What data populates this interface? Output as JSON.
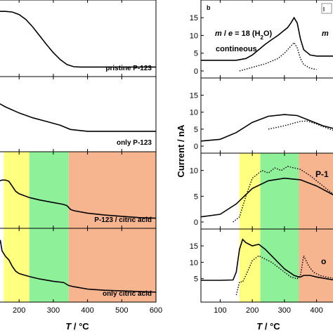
{
  "chart_data": [
    {
      "type": "line",
      "id": "a",
      "xlabel": "T / °C",
      "xlim": [
        140,
        600
      ],
      "xticks": [
        200,
        300,
        400,
        500,
        600
      ],
      "colors": {
        "line": "#000000",
        "yellow": "#ffff80",
        "green": "#8ff09a",
        "orange": "#f6b48f"
      },
      "panels": [
        {
          "label": "pristine P-123",
          "ylim": [
            0,
            1
          ],
          "shading": false,
          "series": [
            {
              "style": "solid",
              "x": [
                140,
                160,
                180,
                200,
                220,
                240,
                260,
                280,
                300,
                320,
                340,
                360,
                380,
                400,
                450,
                500,
                550,
                600
              ],
              "y": [
                0.93,
                0.93,
                0.92,
                0.88,
                0.8,
                0.68,
                0.54,
                0.4,
                0.27,
                0.16,
                0.08,
                0.045,
                0.04,
                0.04,
                0.04,
                0.04,
                0.04,
                0.04
              ]
            }
          ]
        },
        {
          "label": "only P-123",
          "ylim": [
            0,
            1
          ],
          "shading": false,
          "series": [
            {
              "style": "solid",
              "x": [
                140,
                160,
                200,
                240,
                280,
                320,
                350,
                400,
                450,
                500,
                550,
                600
              ],
              "y": [
                0.68,
                0.62,
                0.52,
                0.44,
                0.38,
                0.32,
                0.25,
                0.22,
                0.22,
                0.22,
                0.22,
                0.22
              ]
            }
          ]
        },
        {
          "label": "P-123 / citric acid",
          "ylim": [
            0,
            1
          ],
          "shading": true,
          "series": [
            {
              "style": "solid",
              "x": [
                140,
                150,
                160,
                170,
                180,
                190,
                200,
                230,
                260,
                300,
                330,
                340,
                350,
                360,
                400,
                450,
                500,
                550,
                600
              ],
              "y": [
                0.64,
                0.66,
                0.66,
                0.64,
                0.56,
                0.48,
                0.44,
                0.38,
                0.34,
                0.3,
                0.27,
                0.25,
                0.19,
                0.17,
                0.13,
                0.1,
                0.08,
                0.06,
                0.05
              ]
            }
          ]
        },
        {
          "label": "only citric acid",
          "ylim": [
            0,
            1
          ],
          "shading": true,
          "series": [
            {
              "style": "solid",
              "x": [
                140,
                145,
                150,
                160,
                170,
                180,
                190,
                200,
                230,
                260,
                300,
                330,
                345,
                360,
                400,
                450,
                500,
                550,
                600
              ],
              "y": [
                0.82,
                0.92,
                0.74,
                0.65,
                0.59,
                0.48,
                0.4,
                0.36,
                0.31,
                0.27,
                0.23,
                0.21,
                0.16,
                0.14,
                0.1,
                0.08,
                0.07,
                0.06,
                0.05
              ]
            }
          ]
        }
      ],
      "shading": [
        {
          "from": 155,
          "to": 230,
          "color": "yellow"
        },
        {
          "from": 230,
          "to": 345,
          "color": "green"
        },
        {
          "from": 345,
          "to": 600,
          "color": "orange"
        }
      ]
    },
    {
      "type": "line",
      "id": "b",
      "panel_letter": "b",
      "xlabel": "T / °C",
      "ylabel": "Current / nA",
      "xlim": [
        40,
        460
      ],
      "xticks": [
        100,
        200,
        300,
        400
      ],
      "panels": [
        {
          "ylim": [
            0,
            18
          ],
          "yticks": [
            0,
            5,
            10,
            15
          ],
          "texts": [
            "m / e = 18 (H2O)",
            "contineous",
            "m"
          ],
          "shading": false,
          "series": [
            {
              "style": "solid",
              "x": [
                40,
                100,
                150,
                180,
                200,
                220,
                240,
                260,
                280,
                300,
                310,
                320,
                330,
                340,
                350,
                360,
                380,
                400,
                420,
                460
              ],
              "y": [
                3,
                3,
                3,
                3.5,
                4.5,
                6,
                7.5,
                8.8,
                10,
                11.5,
                12.2,
                13.5,
                15,
                13.5,
                9,
                6,
                4.5,
                4.2,
                4.2,
                4.2
              ]
            },
            {
              "style": "dotted",
              "x": [
                160,
                200,
                240,
                280,
                300,
                320,
                330,
                340,
                350,
                360,
                380,
                400
              ],
              "y": [
                0,
                1.0,
                2.0,
                3.5,
                5,
                7,
                8,
                6.5,
                3.5,
                1.8,
                0.8,
                0.4
              ]
            }
          ]
        },
        {
          "ylim": [
            0,
            18
          ],
          "yticks": [
            0,
            5,
            10,
            15
          ],
          "shading": false,
          "series": [
            {
              "style": "solid",
              "x": [
                40,
                100,
                150,
                200,
                250,
                300,
                340,
                380,
                420,
                460
              ],
              "y": [
                1.5,
                2,
                4,
                7,
                8.8,
                9.3,
                9.0,
                7.5,
                6,
                5
              ]
            },
            {
              "style": "dotted",
              "x": [
                250,
                300,
                350,
                370,
                400,
                440,
                460
              ],
              "y": [
                5,
                6,
                7.3,
                7.4,
                6.5,
                5,
                4.5
              ]
            }
          ]
        },
        {
          "ylim": [
            0,
            12
          ],
          "yticks": [
            0,
            5,
            10
          ],
          "texts": [
            "P-1"
          ],
          "shading": true,
          "series": [
            {
              "style": "solid",
              "x": [
                40,
                100,
                150,
                200,
                250,
                300,
                350,
                400,
                460
              ],
              "y": [
                1,
                1.5,
                3.5,
                6.5,
                8.0,
                8.5,
                8.2,
                7,
                5
              ]
            },
            {
              "style": "dotted",
              "x": [
                140,
                160,
                180,
                200,
                230,
                250,
                270,
                290,
                310,
                330,
                350,
                380,
                420,
                460
              ],
              "y": [
                0,
                1.0,
                5,
                8.5,
                10,
                9.5,
                10.5,
                10,
                10.8,
                10.5,
                10.2,
                9,
                7,
                5
              ]
            }
          ]
        },
        {
          "ylim": [
            0,
            18
          ],
          "yticks": [
            5,
            10,
            15
          ],
          "texts": [
            "o"
          ],
          "shading": true,
          "series": [
            {
              "style": "solid",
              "x": [
                40,
                100,
                140,
                150,
                160,
                170,
                180,
                200,
                220,
                240,
                270,
                300,
                330,
                345,
                350,
                360,
                380,
                400,
                430,
                460
              ],
              "y": [
                4.5,
                4.5,
                4.6,
                7,
                14,
                17,
                16,
                15,
                15.5,
                14,
                11,
                8,
                6,
                5.5,
                5.5,
                6,
                6,
                5.5,
                5,
                4.5
              ]
            },
            {
              "style": "dotted",
              "x": [
                150,
                160,
                170,
                180,
                200,
                220,
                240,
                260,
                280,
                300,
                320,
                340,
                350,
                360,
                375,
                390,
                410,
                430,
                460
              ],
              "y": [
                0,
                4,
                4,
                6,
                10.5,
                12,
                11,
                10,
                8.5,
                7,
                5.5,
                5,
                6,
                12,
                9,
                7,
                6,
                5.5,
                5
              ]
            }
          ]
        }
      ],
      "shading": [
        {
          "from": 160,
          "to": 225,
          "color": "yellow"
        },
        {
          "from": 225,
          "to": 345,
          "color": "green"
        },
        {
          "from": 345,
          "to": 460,
          "color": "orange"
        }
      ]
    }
  ]
}
